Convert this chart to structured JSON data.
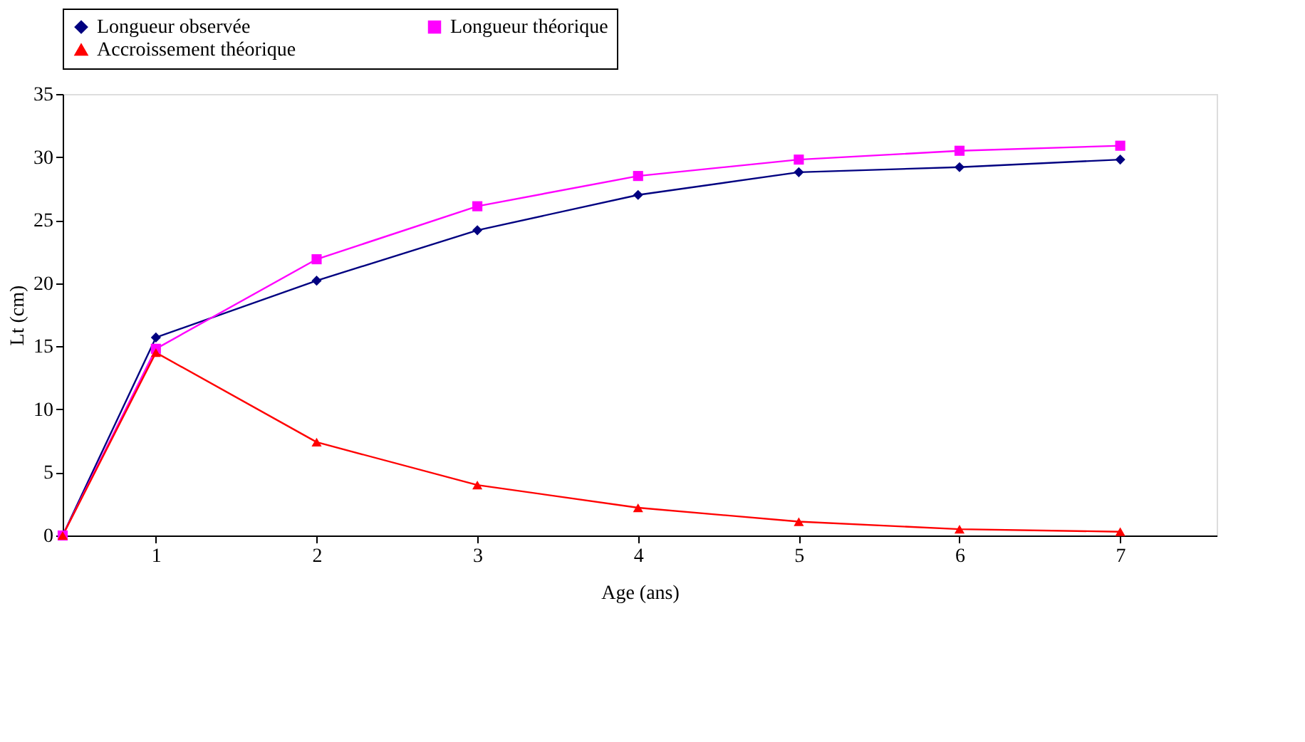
{
  "chart_data": {
    "type": "line",
    "xlabel": "Age (ans)",
    "ylabel": "Lt (cm)",
    "x": [
      0.42,
      1,
      2,
      3,
      4,
      5,
      6,
      7
    ],
    "series": [
      {
        "name": "Longueur observée",
        "color": "#000080",
        "marker": "diamond",
        "values": [
          0,
          15.7,
          20.2,
          24.2,
          27.0,
          28.8,
          29.2,
          29.8
        ]
      },
      {
        "name": "Longueur théorique",
        "color": "#ff00ff",
        "marker": "square",
        "values": [
          0,
          14.8,
          21.9,
          26.1,
          28.5,
          29.8,
          30.5,
          30.9
        ]
      },
      {
        "name": "Accroissement théorique",
        "color": "#ff0000",
        "marker": "triangle",
        "values": [
          0,
          14.5,
          7.4,
          4.0,
          2.2,
          1.1,
          0.5,
          0.3
        ]
      }
    ],
    "xlim": [
      0.42,
      7.6
    ],
    "xticks": [
      {
        "value": 1,
        "label": "1"
      },
      {
        "value": 2,
        "label": "2"
      },
      {
        "value": 3,
        "label": "3"
      },
      {
        "value": 4,
        "label": "4"
      },
      {
        "value": 5,
        "label": "5"
      },
      {
        "value": 6,
        "label": "6"
      },
      {
        "value": 7,
        "label": "7"
      }
    ],
    "ylim": [
      0,
      35
    ],
    "yticks": [
      0,
      5,
      10,
      15,
      20,
      25,
      30,
      35
    ],
    "grid": false,
    "legend": "top",
    "line_style": "solid"
  }
}
